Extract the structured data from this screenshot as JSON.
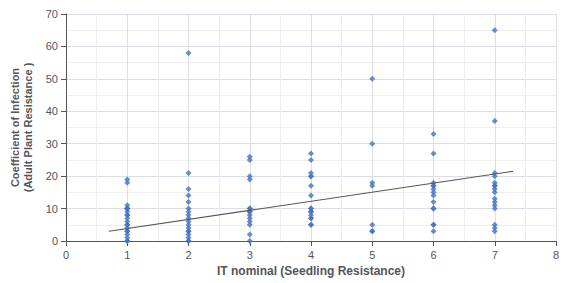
{
  "chart_data": {
    "type": "scatter",
    "xlabel": "IT nominal (Seedling Resistance)",
    "ylabel": "Coefficient of Infection\n(Adult Plant Resistance )",
    "series": [
      {
        "type": "scatter",
        "color": "#4472C4",
        "marker": "diamond",
        "x": [
          1,
          1,
          1,
          1,
          1,
          1,
          1,
          1,
          1,
          1,
          1,
          1,
          1,
          1,
          1,
          1,
          1,
          1,
          1,
          1,
          2,
          2,
          2,
          2,
          2,
          2,
          2,
          2,
          2,
          2,
          2,
          2,
          2,
          2,
          2,
          2,
          2,
          2,
          3,
          3,
          3,
          3,
          3,
          3,
          3,
          3,
          3,
          3,
          3,
          3,
          3,
          3,
          4,
          4,
          4,
          4,
          4,
          4,
          4,
          4,
          4,
          4,
          4,
          4,
          4,
          4,
          4,
          4,
          5,
          5,
          5,
          5,
          5,
          5,
          5,
          6,
          6,
          6,
          6,
          6,
          6,
          6,
          6,
          6,
          6,
          6,
          6,
          6,
          6,
          7,
          7,
          7,
          7,
          7,
          7,
          7,
          7,
          7,
          7,
          7,
          7,
          7,
          7,
          7,
          7
        ],
        "values": [
          0,
          0,
          1,
          2,
          3,
          3,
          4,
          5,
          5,
          6,
          7,
          8,
          8,
          9,
          10,
          10,
          10,
          11,
          18,
          19,
          0,
          0,
          1,
          2,
          3,
          3,
          4,
          5,
          6,
          7,
          8,
          9,
          10,
          12,
          14,
          16,
          21,
          58,
          0,
          2,
          5,
          6,
          7,
          8,
          9,
          9,
          10,
          10,
          19,
          20,
          25,
          26,
          5,
          5,
          7,
          7,
          8,
          9,
          9,
          10,
          10,
          14,
          17,
          20,
          20,
          21,
          25,
          27,
          3,
          3,
          5,
          17,
          18,
          30,
          50,
          3,
          5,
          5,
          10,
          10,
          12,
          14,
          15,
          16,
          17,
          17,
          18,
          27,
          33,
          3,
          4,
          5,
          10,
          11,
          12,
          13,
          15,
          16,
          17,
          17,
          18,
          20,
          21,
          37,
          65
        ]
      },
      {
        "type": "line",
        "color": "#555555",
        "line_style": "solid",
        "x": [
          0.7,
          7.3
        ],
        "values": [
          3.0,
          21.5
        ]
      }
    ],
    "xlim": [
      0,
      8
    ],
    "ylim": [
      0,
      70
    ],
    "xticks": [
      0,
      1,
      2,
      3,
      4,
      5,
      6,
      7,
      8
    ],
    "yticks": [
      0,
      10,
      20,
      30,
      40,
      50,
      60,
      70
    ],
    "grid": true
  }
}
